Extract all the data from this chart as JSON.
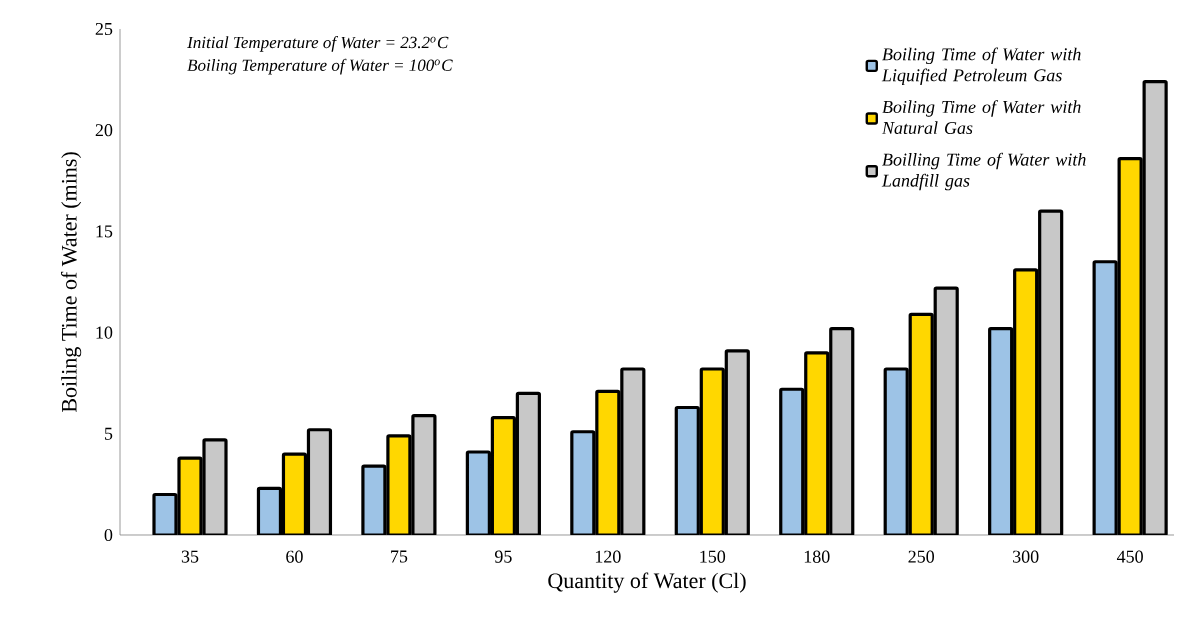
{
  "chart_data": {
    "type": "bar",
    "categories": [
      "35",
      "60",
      "75",
      "95",
      "120",
      "150",
      "180",
      "250",
      "300",
      "450"
    ],
    "series": [
      {
        "name": "Boiling Time of Water with Liquified Petroleum Gas",
        "color": "#9dc3e6",
        "values": [
          2.0,
          2.3,
          3.4,
          4.1,
          5.1,
          6.3,
          7.2,
          8.2,
          10.2,
          13.5
        ]
      },
      {
        "name": "Boiling Time of Water with Natural Gas",
        "color": "#ffd700",
        "values": [
          3.8,
          4.0,
          4.9,
          5.8,
          7.1,
          8.2,
          9.0,
          10.9,
          13.1,
          18.6
        ]
      },
      {
        "name": "Boilling Time of Water with Landfill gas",
        "color": "#c8c8c8",
        "values": [
          4.7,
          5.2,
          5.9,
          7.0,
          8.2,
          9.1,
          10.2,
          12.2,
          16.0,
          22.4
        ]
      }
    ],
    "ylim": [
      0,
      25
    ],
    "yticks": [
      0,
      5,
      10,
      15,
      20,
      25
    ],
    "xlabel": "Quantity of Water (Cl)",
    "ylabel": "Boiling Time of Water (mins)",
    "annotations": [
      "Initial Temperature of Water = 23.2$^{o}$C",
      "Boiling Temperature of Water = 100$^{o}$C"
    ],
    "legend": "top right"
  }
}
